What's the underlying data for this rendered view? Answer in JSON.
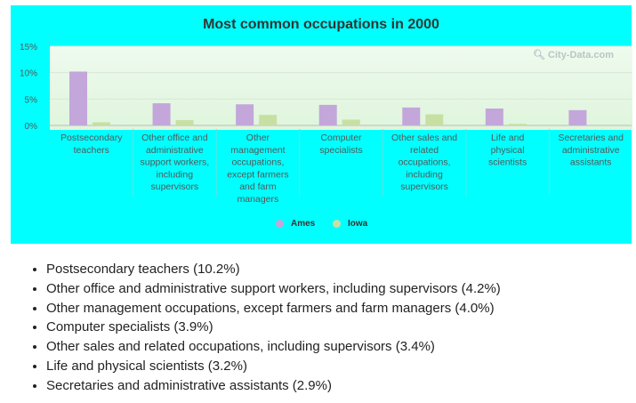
{
  "chart_data": {
    "type": "bar",
    "title": "Most common occupations in 2000",
    "categories": [
      [
        "Postsecondary",
        "teachers"
      ],
      [
        "Other office and",
        "administrative",
        "support workers,",
        "including",
        "supervisors"
      ],
      [
        "Other",
        "management",
        "occupations,",
        "except farmers",
        "and farm",
        "managers"
      ],
      [
        "Computer",
        "specialists"
      ],
      [
        "Other sales and",
        "related",
        "occupations,",
        "including",
        "supervisors"
      ],
      [
        "Life and",
        "physical",
        "scientists"
      ],
      [
        "Secretaries and",
        "administrative",
        "assistants"
      ]
    ],
    "series": [
      {
        "name": "Ames",
        "color": "#c3a6da",
        "values": [
          10.2,
          4.2,
          4.0,
          3.9,
          3.4,
          3.2,
          2.9
        ]
      },
      {
        "name": "Iowa",
        "color": "#c8dfa4",
        "values": [
          0.6,
          1.0,
          2.0,
          1.1,
          2.1,
          0.3,
          0.0
        ]
      }
    ],
    "ylim": [
      0,
      15
    ],
    "yticks": [
      "0%",
      "5%",
      "10%",
      "15%"
    ],
    "ytick_values": [
      0,
      5,
      10,
      15
    ],
    "grid": true,
    "legend_position": "bottom-center"
  },
  "watermark": "City-Data.com",
  "list": [
    "Postsecondary teachers (10.2%)",
    "Other office and administrative support workers, including supervisors (4.2%)",
    "Other management occupations, except farmers and farm managers (4.0%)",
    "Computer specialists (3.9%)",
    "Other sales and related occupations, including supervisors (3.4%)",
    "Life and physical scientists (3.2%)",
    "Secretaries and administrative assistants (2.9%)"
  ]
}
